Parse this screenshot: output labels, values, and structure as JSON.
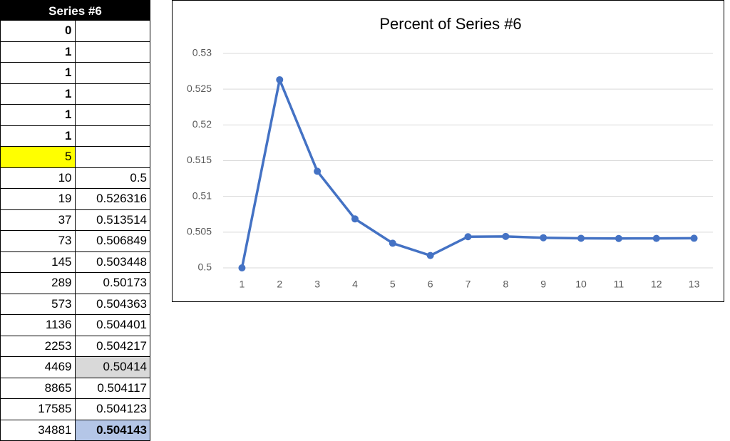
{
  "table": {
    "header": "Series #6",
    "rows": [
      [
        0
      ],
      [
        1
      ],
      [
        1
      ],
      [
        1
      ],
      [
        1
      ],
      [
        1
      ],
      [
        5
      ],
      [
        10,
        0.5
      ],
      [
        19,
        0.526316
      ],
      [
        37,
        0.513514
      ],
      [
        73,
        0.506849
      ],
      [
        145,
        0.503448
      ],
      [
        289,
        0.50173
      ],
      [
        573,
        0.504363
      ],
      [
        1136,
        0.504401
      ],
      [
        2253,
        0.504217
      ],
      [
        4469,
        0.50414
      ],
      [
        8865,
        0.504117
      ],
      [
        17585,
        0.504123
      ],
      [
        34881,
        0.504143
      ]
    ]
  },
  "chart_data": {
    "type": "line",
    "title": "Percent of Series #6",
    "categories": [
      "1",
      "2",
      "3",
      "4",
      "5",
      "6",
      "7",
      "8",
      "9",
      "10",
      "11",
      "12",
      "13"
    ],
    "series": [
      {
        "name": "Percent of Series #6",
        "color": "#4472c4",
        "values": [
          0.5,
          0.526316,
          0.513514,
          0.506849,
          0.503448,
          0.50173,
          0.504363,
          0.504401,
          0.504217,
          0.50414,
          0.504117,
          0.504123,
          0.504143
        ]
      }
    ],
    "ylim": [
      0.5,
      0.53
    ],
    "yticks": [
      0.5,
      0.505,
      0.51,
      0.515,
      0.52,
      0.525,
      0.53
    ],
    "grid": true
  }
}
